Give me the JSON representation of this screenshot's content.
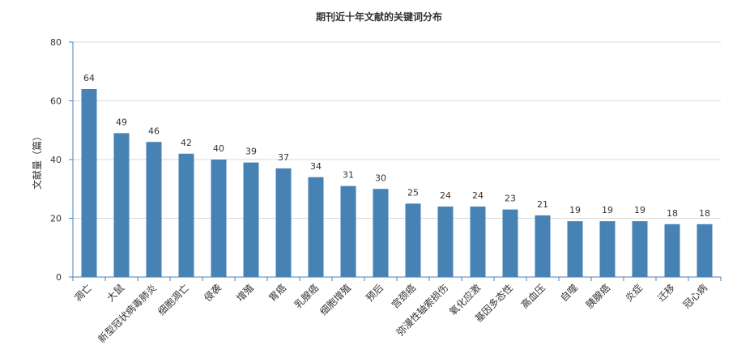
{
  "chart_data": {
    "type": "bar",
    "title": "期刊近十年文献的关键词分布",
    "xlabel": "",
    "ylabel": "文献量（篇）",
    "ylim": [
      0,
      80
    ],
    "yticks": [
      0,
      20,
      40,
      60,
      80
    ],
    "grid": true,
    "bar_color": "#4682b4",
    "categories": [
      "凋亡",
      "大鼠",
      "新型冠状病毒肺炎",
      "细胞凋亡",
      "侵袭",
      "增殖",
      "胃癌",
      "乳腺癌",
      "细胞增殖",
      "预后",
      "宫颈癌",
      "弥漫性轴索损伤",
      "氧化应激",
      "基因多态性",
      "高血压",
      "自噬",
      "胰腺癌",
      "炎症",
      "迁移",
      "冠心病"
    ],
    "values": [
      64,
      49,
      46,
      42,
      40,
      39,
      37,
      34,
      31,
      30,
      25,
      24,
      24,
      23,
      21,
      19,
      19,
      19,
      18,
      18
    ]
  }
}
